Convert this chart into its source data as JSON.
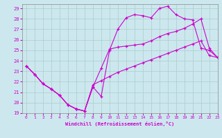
{
  "xlabel": "Windchill (Refroidissement éolien,°C)",
  "bg_color": "#cce8ee",
  "line_color": "#cc00cc",
  "grid_color": "#aacccc",
  "xlim": [
    -0.5,
    23
  ],
  "ylim": [
    19,
    29.4
  ],
  "yticks": [
    19,
    20,
    21,
    22,
    23,
    24,
    25,
    26,
    27,
    28,
    29
  ],
  "xticks": [
    0,
    1,
    2,
    3,
    4,
    5,
    6,
    7,
    8,
    9,
    10,
    11,
    12,
    13,
    14,
    15,
    16,
    17,
    18,
    19,
    20,
    21,
    22,
    23
  ],
  "curve1_x": [
    0,
    1,
    2,
    3,
    4,
    5,
    6,
    7,
    8,
    9,
    10,
    11,
    12,
    13,
    14,
    15,
    16,
    17,
    18,
    19,
    20,
    21,
    22,
    23
  ],
  "curve1_y": [
    23.5,
    22.7,
    21.8,
    21.3,
    20.7,
    19.8,
    19.4,
    19.2,
    21.5,
    20.6,
    25.0,
    27.0,
    28.1,
    28.4,
    28.3,
    28.1,
    29.0,
    29.2,
    28.4,
    28.0,
    27.9,
    25.2,
    25.0,
    24.3
  ],
  "curve2_x": [
    0,
    1,
    2,
    3,
    4,
    5,
    6,
    7,
    8,
    9,
    10,
    11,
    12,
    13,
    14,
    15,
    16,
    17,
    18,
    19,
    20,
    21,
    22,
    23
  ],
  "curve2_y": [
    23.5,
    22.7,
    21.8,
    21.3,
    20.7,
    19.8,
    19.4,
    19.2,
    21.5,
    23.3,
    25.1,
    25.3,
    25.4,
    25.5,
    25.6,
    25.9,
    26.3,
    26.6,
    26.8,
    27.1,
    27.5,
    28.0,
    25.2,
    24.3
  ],
  "curve3_x": [
    0,
    1,
    2,
    3,
    4,
    5,
    6,
    7,
    8,
    9,
    10,
    11,
    12,
    13,
    14,
    15,
    16,
    17,
    18,
    19,
    20,
    21,
    22,
    23
  ],
  "curve3_y": [
    23.5,
    22.7,
    21.8,
    21.3,
    20.7,
    19.8,
    19.4,
    19.2,
    21.7,
    22.1,
    22.5,
    22.9,
    23.2,
    23.5,
    23.8,
    24.1,
    24.4,
    24.7,
    25.0,
    25.3,
    25.6,
    25.9,
    24.5,
    24.3
  ]
}
